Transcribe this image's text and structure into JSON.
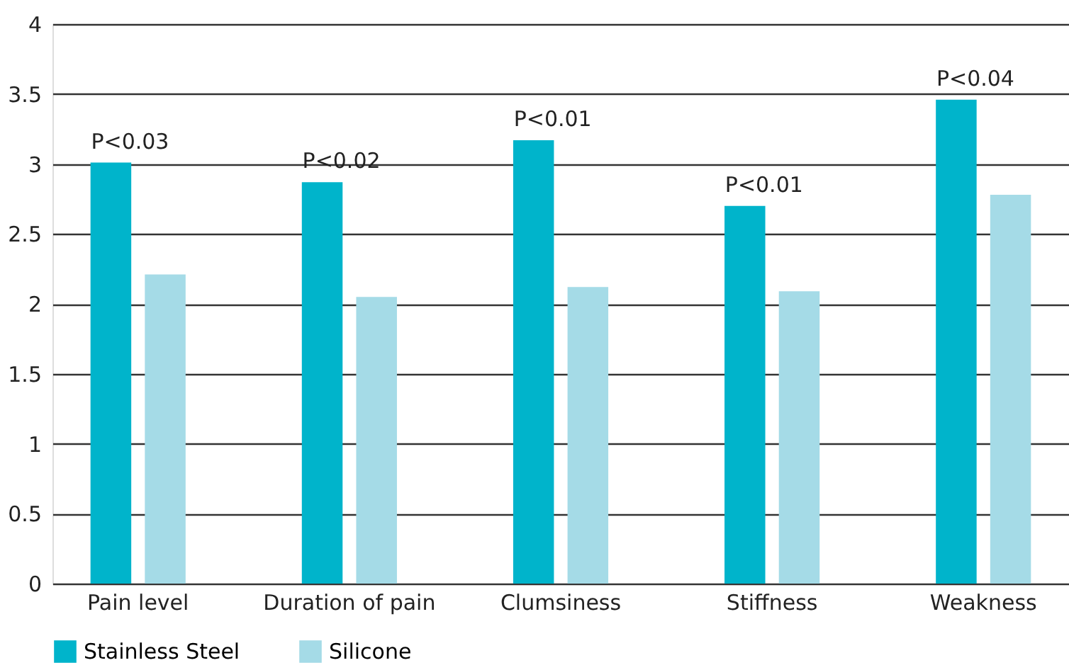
{
  "chart_data": {
    "type": "bar",
    "categories": [
      "Pain level",
      "Duration of pain",
      "Clumsiness",
      "Stiffness",
      "Weakness"
    ],
    "series": [
      {
        "name": "Stainless Steel",
        "color": "#00b4cb",
        "values": [
          3.01,
          2.87,
          3.17,
          2.7,
          3.46
        ]
      },
      {
        "name": "Silicone",
        "color": "#a5dbe7",
        "values": [
          2.21,
          2.05,
          2.12,
          2.09,
          2.78
        ]
      }
    ],
    "annotations": [
      {
        "text": "P<0.03",
        "x": "Pain level",
        "y": 3.01
      },
      {
        "text": "P<0.02",
        "x": "Duration of pain",
        "y": 2.87
      },
      {
        "text": "P<0.01",
        "x": "Clumsiness",
        "y": 3.17
      },
      {
        "text": "P<0.01",
        "x": "Stiffness",
        "y": 2.7
      },
      {
        "text": "P<0.04",
        "x": "Weakness",
        "y": 3.46
      }
    ],
    "ylim": [
      0,
      4
    ],
    "yticks": [
      0,
      0.5,
      1,
      1.5,
      2,
      2.5,
      3,
      3.5,
      4
    ],
    "grid": "y",
    "legend": "bottom"
  }
}
